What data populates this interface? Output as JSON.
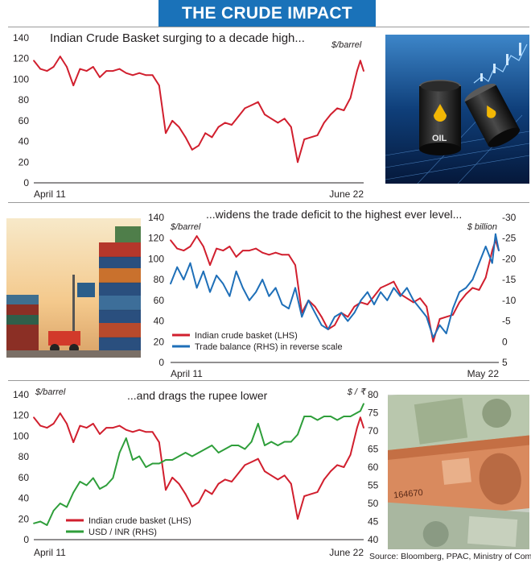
{
  "banner": {
    "title": "THE CRUDE IMPACT"
  },
  "source": "Source: Bloomberg, PPAC, Ministry of Commerce",
  "colors": {
    "crude": "#d11f2e",
    "trade": "#1e6fb8",
    "rupee": "#2e9e3a",
    "banner": "#1a72b9"
  },
  "chart_data": [
    {
      "type": "line",
      "title": "Indian Crude Basket surging to a decade high...",
      "unit_left": "$/barrel",
      "ylim": [
        0,
        140
      ],
      "y_ticks": [
        0,
        20,
        40,
        60,
        80,
        100,
        120,
        140
      ],
      "x_start_label": "April 11",
      "x_end_label": "June 22",
      "grid": false,
      "series": [
        {
          "name": "Indian crude basket",
          "axis": "left",
          "color": "#d11f2e",
          "x": [
            0.0,
            0.02,
            0.04,
            0.06,
            0.08,
            0.1,
            0.12,
            0.14,
            0.16,
            0.18,
            0.2,
            0.22,
            0.24,
            0.26,
            0.28,
            0.3,
            0.32,
            0.34,
            0.36,
            0.38,
            0.4,
            0.42,
            0.44,
            0.46,
            0.48,
            0.5,
            0.52,
            0.54,
            0.56,
            0.58,
            0.6,
            0.62,
            0.64,
            0.66,
            0.68,
            0.7,
            0.72,
            0.74,
            0.76,
            0.78,
            0.8,
            0.82,
            0.84,
            0.86,
            0.88,
            0.9,
            0.92,
            0.94,
            0.96,
            0.98,
            0.99,
            1.0
          ],
          "y": [
            118,
            110,
            108,
            112,
            122,
            112,
            94,
            110,
            108,
            112,
            102,
            108,
            108,
            110,
            106,
            104,
            106,
            104,
            104,
            94,
            48,
            60,
            54,
            44,
            32,
            36,
            48,
            44,
            54,
            58,
            56,
            64,
            72,
            75,
            78,
            66,
            62,
            58,
            62,
            54,
            20,
            42,
            44,
            46,
            58,
            66,
            72,
            70,
            82,
            108,
            118,
            108
          ]
        }
      ]
    },
    {
      "type": "line",
      "title": "...widens the trade deficit to the highest ever level...",
      "unit_left": "$/barrel",
      "unit_right": "$ billion",
      "ylim": [
        0,
        140
      ],
      "y_ticks": [
        0,
        20,
        40,
        60,
        80,
        100,
        120,
        140
      ],
      "y2lim": [
        5,
        -30
      ],
      "y2_ticks": [
        5,
        0,
        -5,
        -10,
        -15,
        -20,
        -25,
        -30
      ],
      "x_start_label": "April 11",
      "x_end_label": "May 22",
      "grid": false,
      "legend": "bottom-left",
      "series": [
        {
          "name": "Indian crude basket (LHS)",
          "axis": "left",
          "color": "#d11f2e",
          "x": [
            0.0,
            0.02,
            0.04,
            0.06,
            0.08,
            0.1,
            0.12,
            0.14,
            0.16,
            0.18,
            0.2,
            0.22,
            0.24,
            0.26,
            0.28,
            0.3,
            0.32,
            0.34,
            0.36,
            0.38,
            0.4,
            0.42,
            0.44,
            0.46,
            0.48,
            0.5,
            0.52,
            0.54,
            0.56,
            0.58,
            0.6,
            0.62,
            0.64,
            0.66,
            0.68,
            0.7,
            0.72,
            0.74,
            0.76,
            0.78,
            0.8,
            0.82,
            0.84,
            0.86,
            0.88,
            0.9,
            0.92,
            0.94,
            0.96,
            0.98,
            0.99,
            1.0
          ],
          "y": [
            118,
            110,
            108,
            112,
            122,
            112,
            94,
            110,
            108,
            112,
            102,
            108,
            108,
            110,
            106,
            104,
            106,
            104,
            104,
            94,
            48,
            60,
            54,
            44,
            32,
            36,
            48,
            44,
            54,
            58,
            56,
            64,
            72,
            75,
            78,
            66,
            62,
            58,
            62,
            54,
            20,
            42,
            44,
            46,
            58,
            66,
            72,
            70,
            82,
            108,
            118,
            108
          ]
        },
        {
          "name": "Trade balance (RHS) in reverse scale",
          "axis": "right",
          "color": "#1e6fb8",
          "x": [
            0.0,
            0.02,
            0.04,
            0.06,
            0.08,
            0.1,
            0.12,
            0.14,
            0.16,
            0.18,
            0.2,
            0.22,
            0.24,
            0.26,
            0.28,
            0.3,
            0.32,
            0.34,
            0.36,
            0.38,
            0.4,
            0.42,
            0.44,
            0.46,
            0.48,
            0.5,
            0.52,
            0.54,
            0.56,
            0.58,
            0.6,
            0.62,
            0.64,
            0.66,
            0.68,
            0.7,
            0.72,
            0.74,
            0.76,
            0.78,
            0.8,
            0.82,
            0.84,
            0.86,
            0.88,
            0.9,
            0.92,
            0.94,
            0.96,
            0.98,
            0.99,
            1.0
          ],
          "y": [
            -14,
            -18,
            -15,
            -19,
            -13,
            -17,
            -12,
            -16,
            -14,
            -11,
            -17,
            -13,
            -10,
            -12,
            -15,
            -11,
            -13,
            -9,
            -8,
            -13,
            -6,
            -10,
            -7,
            -4,
            -3,
            -6,
            -7,
            -5,
            -7,
            -10,
            -12,
            -9,
            -12,
            -10,
            -13,
            -11,
            -13,
            -10,
            -8,
            -6,
            -1,
            -4,
            -2,
            -8,
            -12,
            -13,
            -15,
            -19,
            -23,
            -19,
            -26,
            -22
          ]
        }
      ]
    },
    {
      "type": "line",
      "title": "...and drags the rupee lower",
      "unit_left": "$/barrel",
      "unit_right": "$ / ₹",
      "ylim": [
        0,
        140
      ],
      "y_ticks": [
        0,
        20,
        40,
        60,
        80,
        100,
        120,
        140
      ],
      "y2lim": [
        40,
        80
      ],
      "y2_ticks": [
        40,
        45,
        50,
        55,
        60,
        65,
        70,
        75,
        80
      ],
      "x_start_label": "April 11",
      "x_end_label": "June 22",
      "grid": false,
      "legend": "bottom-left",
      "series": [
        {
          "name": "Indian crude basket (LHS)",
          "axis": "left",
          "color": "#d11f2e",
          "x": [
            0.0,
            0.02,
            0.04,
            0.06,
            0.08,
            0.1,
            0.12,
            0.14,
            0.16,
            0.18,
            0.2,
            0.22,
            0.24,
            0.26,
            0.28,
            0.3,
            0.32,
            0.34,
            0.36,
            0.38,
            0.4,
            0.42,
            0.44,
            0.46,
            0.48,
            0.5,
            0.52,
            0.54,
            0.56,
            0.58,
            0.6,
            0.62,
            0.64,
            0.66,
            0.68,
            0.7,
            0.72,
            0.74,
            0.76,
            0.78,
            0.8,
            0.82,
            0.84,
            0.86,
            0.88,
            0.9,
            0.92,
            0.94,
            0.96,
            0.98,
            0.99,
            1.0
          ],
          "y": [
            118,
            110,
            108,
            112,
            122,
            112,
            94,
            110,
            108,
            112,
            102,
            108,
            108,
            110,
            106,
            104,
            106,
            104,
            104,
            94,
            48,
            60,
            54,
            44,
            32,
            36,
            48,
            44,
            54,
            58,
            56,
            64,
            72,
            75,
            78,
            66,
            62,
            58,
            62,
            54,
            20,
            42,
            44,
            46,
            58,
            66,
            72,
            70,
            82,
            108,
            118,
            108
          ]
        },
        {
          "name": "USD / INR (RHS)",
          "axis": "right",
          "color": "#2e9e3a",
          "x": [
            0.0,
            0.02,
            0.04,
            0.06,
            0.08,
            0.1,
            0.12,
            0.14,
            0.16,
            0.18,
            0.2,
            0.22,
            0.24,
            0.26,
            0.28,
            0.3,
            0.32,
            0.34,
            0.36,
            0.38,
            0.4,
            0.42,
            0.44,
            0.46,
            0.48,
            0.5,
            0.52,
            0.54,
            0.56,
            0.58,
            0.6,
            0.62,
            0.64,
            0.66,
            0.68,
            0.7,
            0.72,
            0.74,
            0.76,
            0.78,
            0.8,
            0.82,
            0.84,
            0.86,
            0.88,
            0.9,
            0.92,
            0.94,
            0.96,
            0.98,
            0.99,
            1.0
          ],
          "y": [
            44.5,
            45,
            44,
            48,
            50,
            49,
            53,
            56,
            55,
            57,
            54,
            55,
            57,
            64,
            68,
            62,
            63,
            60,
            61,
            61,
            62,
            62,
            63,
            64,
            63,
            64,
            65,
            66,
            64,
            65,
            66,
            66,
            65,
            67,
            72,
            66,
            67,
            66,
            67,
            67,
            69,
            74,
            74,
            73,
            74,
            74,
            73,
            74,
            74,
            75,
            75.5,
            77.5
          ]
        }
      ]
    }
  ]
}
